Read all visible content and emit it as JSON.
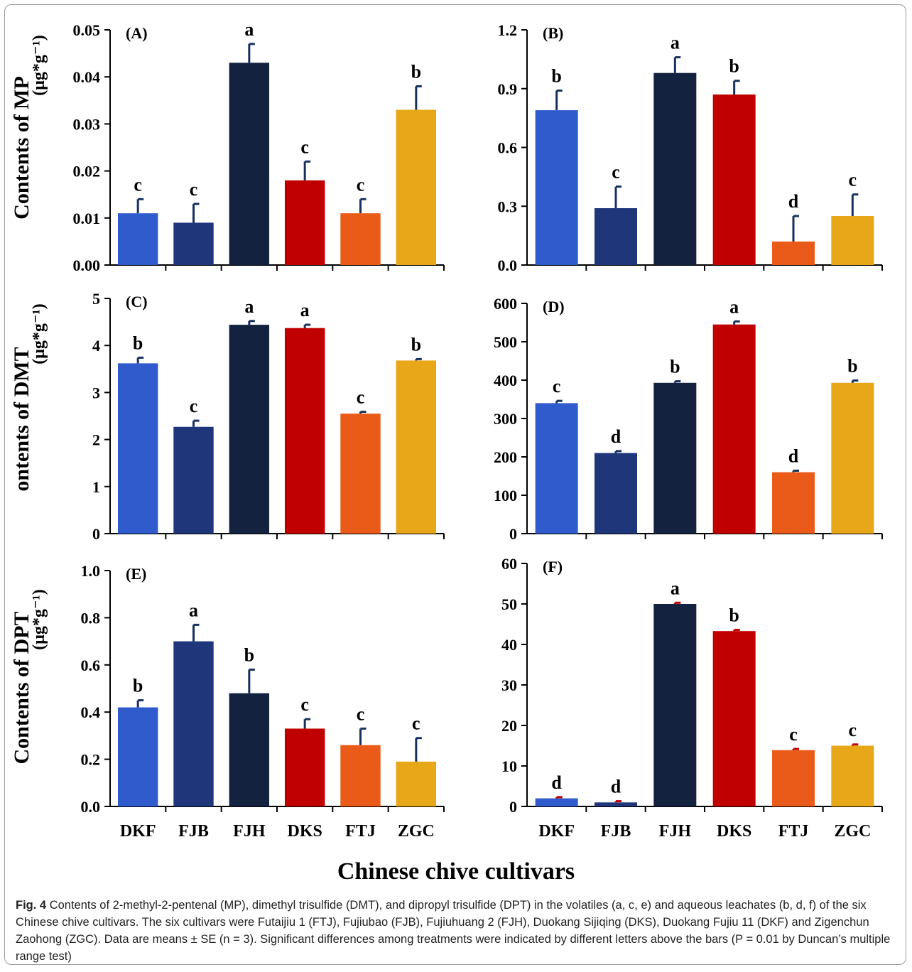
{
  "figure": {
    "x_axis_title": "Chinese chive cultivars",
    "caption": {
      "label": "Fig. 4",
      "text": "Contents of 2-methyl-2-pentenal (MP), dimethyl trisulfide (DMT), and dipropyl trisulfide (DPT) in the volatiles (a, c, e) and aqueous leachates (b, d, f) of the six Chinese chive cultivars. The six cultivars were Futaijiu 1 (FTJ), Fujiubao (FJB), Fujiuhuang 2 (FJH), Duokang Sijiqing (DKS), Duokang Fujiu 11 (DKF) and Zigenchun Zaohong (ZGC). Data are means ± SE (n = 3). Significant differences among treatments were indicated by different letters above the bars (P = 0.01 by Duncan’s multiple range test)"
    }
  },
  "chart_data": [
    {
      "type": "bar",
      "panel": "(A)",
      "ylabel": "Contents of MP",
      "yunit": "(μg*g⁻¹)",
      "categories": [
        "DKF",
        "FJB",
        "FJH",
        "DKS",
        "FTJ",
        "ZGC"
      ],
      "values": [
        0.011,
        0.009,
        0.043,
        0.018,
        0.011,
        0.033
      ],
      "errors": [
        0.003,
        0.004,
        0.004,
        0.004,
        0.003,
        0.005
      ],
      "letters": [
        "c",
        "c",
        "a",
        "c",
        "c",
        "b"
      ],
      "yticks": [
        "0.00",
        "0.01",
        "0.02",
        "0.03",
        "0.04",
        "0.05"
      ],
      "ylim": [
        0,
        0.05
      ],
      "show_xlabels": false
    },
    {
      "type": "bar",
      "panel": "(B)",
      "categories": [
        "DKF",
        "FJB",
        "FJH",
        "DKS",
        "FTJ",
        "ZGC"
      ],
      "values": [
        0.79,
        0.29,
        0.98,
        0.87,
        0.12,
        0.25
      ],
      "errors": [
        0.1,
        0.11,
        0.08,
        0.07,
        0.13,
        0.11
      ],
      "letters": [
        "b",
        "c",
        "a",
        "b",
        "d",
        "c"
      ],
      "yticks": [
        "0.0",
        "0.3",
        "0.6",
        "0.9",
        "1.2"
      ],
      "ylim": [
        0,
        1.2
      ],
      "show_xlabels": false
    },
    {
      "type": "bar",
      "panel": "(C)",
      "ylabel": "ontents of DMT",
      "yunit": "(μg*g⁻¹)",
      "categories": [
        "DKF",
        "FJB",
        "FJH",
        "DKS",
        "FTJ",
        "ZGC"
      ],
      "values": [
        3.62,
        2.27,
        4.44,
        4.37,
        2.55,
        3.68
      ],
      "errors": [
        0.12,
        0.13,
        0.08,
        0.07,
        0.04,
        0.03
      ],
      "letters": [
        "b",
        "c",
        "a",
        "a",
        "c",
        "b"
      ],
      "yticks": [
        "0",
        "1",
        "2",
        "3",
        "4",
        "5"
      ],
      "ylim": [
        0,
        5
      ],
      "show_xlabels": false
    },
    {
      "type": "bar",
      "panel": "(D)",
      "categories": [
        "DKF",
        "FJB",
        "FJH",
        "DKS",
        "FTJ",
        "ZGC"
      ],
      "values": [
        340,
        210,
        393,
        545,
        160,
        393
      ],
      "errors": [
        6,
        5,
        4,
        8,
        4,
        6
      ],
      "letters": [
        "c",
        "d",
        "b",
        "a",
        "d",
        "b"
      ],
      "yticks": [
        "0",
        "100",
        "200",
        "300",
        "400",
        "500",
        "600"
      ],
      "ylim": [
        0,
        600
      ],
      "show_xlabels": false
    },
    {
      "type": "bar",
      "panel": "(E)",
      "ylabel": "Contents of DPT",
      "yunit": "(μg*g⁻¹)",
      "categories": [
        "DKF",
        "FJB",
        "FJH",
        "DKS",
        "FTJ",
        "ZGC"
      ],
      "values": [
        0.42,
        0.7,
        0.48,
        0.33,
        0.26,
        0.19
      ],
      "errors": [
        0.03,
        0.07,
        0.1,
        0.04,
        0.07,
        0.1
      ],
      "letters": [
        "b",
        "a",
        "b",
        "c",
        "c",
        "c"
      ],
      "yticks": [
        "0.0",
        "0.2",
        "0.4",
        "0.6",
        "0.8",
        "1.0"
      ],
      "ylim": [
        0,
        1.0
      ],
      "show_xlabels": true
    },
    {
      "type": "bar",
      "panel": "(F)",
      "categories": [
        "DKF",
        "FJB",
        "FJH",
        "DKS",
        "FTJ",
        "ZGC"
      ],
      "values": [
        2.0,
        1.0,
        50.0,
        43.3,
        13.9,
        15.0
      ],
      "errors": [
        0.3,
        0.3,
        0.3,
        0.3,
        0.3,
        0.3
      ],
      "letters": [
        "d",
        "d",
        "a",
        "b",
        "c",
        "c"
      ],
      "yticks": [
        "0",
        "10",
        "20",
        "30",
        "40",
        "50",
        "60"
      ],
      "ylim": [
        0,
        60
      ],
      "show_xlabels": true
    }
  ],
  "colors": {
    "DKF": "#2f5bcc",
    "FJB": "#1f367a",
    "FJH": "#13233f",
    "DKS": "#c00000",
    "FTJ": "#ea5a18",
    "ZGC": "#e8a619",
    "errorbar_default": "#17315f",
    "errorbar_F": "#c00000"
  }
}
